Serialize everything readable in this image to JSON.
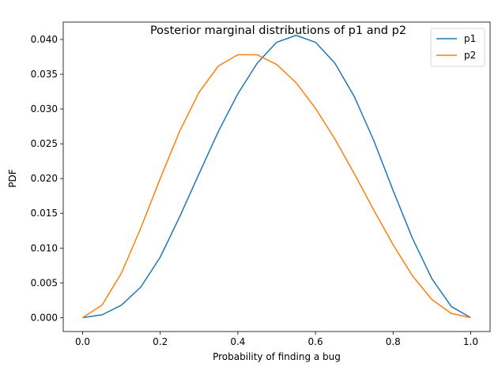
{
  "chart_data": {
    "type": "line",
    "title": "Posterior marginal distributions of p1 and p2",
    "xlabel": "Probability of finding a bug",
    "ylabel": "PDF",
    "xlim": [
      -0.05,
      1.05
    ],
    "ylim": [
      -0.002,
      0.0425
    ],
    "xticks": [
      0.0,
      0.2,
      0.4,
      0.6,
      0.8,
      1.0
    ],
    "xtick_labels": [
      "0.0",
      "0.2",
      "0.4",
      "0.6",
      "0.8",
      "1.0"
    ],
    "yticks": [
      0.0,
      0.005,
      0.01,
      0.015,
      0.02,
      0.025,
      0.03,
      0.035,
      0.04
    ],
    "ytick_labels": [
      "0.000",
      "0.005",
      "0.010",
      "0.015",
      "0.020",
      "0.025",
      "0.030",
      "0.035",
      "0.040"
    ],
    "grid": false,
    "legend_position": "top-right",
    "series": [
      {
        "name": "p1",
        "color": "#1f77b4",
        "x": [
          0.0,
          0.05,
          0.1,
          0.15,
          0.2,
          0.25,
          0.3,
          0.35,
          0.4,
          0.45,
          0.5,
          0.55,
          0.6,
          0.65,
          0.7,
          0.75,
          0.8,
          0.85,
          0.9,
          0.95,
          1.0
        ],
        "y": [
          0.0,
          0.0004,
          0.0018,
          0.0044,
          0.0087,
          0.0145,
          0.0207,
          0.0268,
          0.0322,
          0.0366,
          0.0396,
          0.0406,
          0.0396,
          0.0366,
          0.0318,
          0.0255,
          0.0183,
          0.0114,
          0.0056,
          0.0016,
          0.0
        ]
      },
      {
        "name": "p2",
        "color": "#ff7f0e",
        "x": [
          0.0,
          0.05,
          0.1,
          0.15,
          0.2,
          0.25,
          0.3,
          0.35,
          0.4,
          0.45,
          0.5,
          0.55,
          0.6,
          0.65,
          0.7,
          0.75,
          0.8,
          0.85,
          0.9,
          0.95,
          1.0
        ],
        "y": [
          0.0,
          0.0018,
          0.0064,
          0.0129,
          0.02,
          0.0268,
          0.0324,
          0.0362,
          0.0378,
          0.0378,
          0.0364,
          0.0338,
          0.0301,
          0.0257,
          0.0207,
          0.0155,
          0.0105,
          0.006,
          0.0026,
          0.0006,
          0.0
        ]
      }
    ]
  }
}
